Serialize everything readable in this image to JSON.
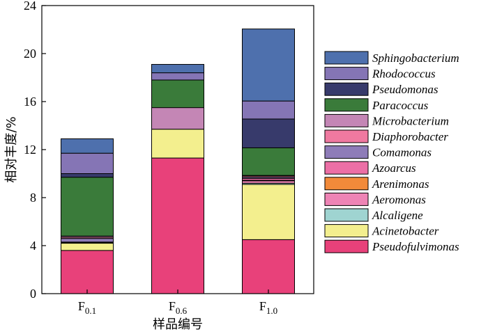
{
  "chart_data": {
    "type": "bar",
    "stacked": true,
    "xlabel": "样品编号",
    "ylabel": "相对丰度/%",
    "ylim": [
      0,
      24
    ],
    "yticks": [
      0,
      4,
      8,
      12,
      16,
      20,
      24
    ],
    "categories": [
      {
        "base": "F",
        "sub": "0.1"
      },
      {
        "base": "F",
        "sub": "0.6"
      },
      {
        "base": "F",
        "sub": "1.0"
      }
    ],
    "series": [
      {
        "name": "Pseudofulvimonas",
        "color": "#e8417a",
        "values": [
          3.6,
          11.3,
          4.5
        ]
      },
      {
        "name": "Acinetobacter",
        "color": "#f3ef8e",
        "values": [
          0.6,
          2.4,
          4.6
        ]
      },
      {
        "name": "Alcaligene",
        "color": "#9fd4d1",
        "values": [
          0.0,
          0.0,
          0.1
        ]
      },
      {
        "name": "Aeromonas",
        "color": "#ee84b5",
        "values": [
          0.05,
          0.0,
          0.2
        ]
      },
      {
        "name": "Arenimonas",
        "color": "#f28a3a",
        "values": [
          0.0,
          0.0,
          0.05
        ]
      },
      {
        "name": "Azoarcus",
        "color": "#ec6fa6",
        "values": [
          0.05,
          0.0,
          0.15
        ]
      },
      {
        "name": "Comamonas",
        "color": "#8e7cb8",
        "values": [
          0.3,
          0.0,
          0.1
        ]
      },
      {
        "name": "Diaphorobacter",
        "color": "#ef79a0",
        "values": [
          0.1,
          0.0,
          0.1
        ]
      },
      {
        "name": "Microbacterium",
        "color": "#c486b5",
        "values": [
          0.1,
          1.8,
          0.05
        ]
      },
      {
        "name": "Paracoccus",
        "color": "#3a7b3a",
        "values": [
          4.9,
          2.3,
          2.3
        ]
      },
      {
        "name": "Pseudomonas",
        "color": "#373a6b",
        "values": [
          0.3,
          0.0,
          2.4
        ]
      },
      {
        "name": "Rhodococcus",
        "color": "#8575b5",
        "values": [
          1.7,
          0.6,
          1.5
        ]
      },
      {
        "name": "Sphingobacterium",
        "color": "#4e70ad",
        "values": [
          1.2,
          0.7,
          6.0
        ]
      }
    ],
    "legend_position": "right",
    "grid": false
  }
}
